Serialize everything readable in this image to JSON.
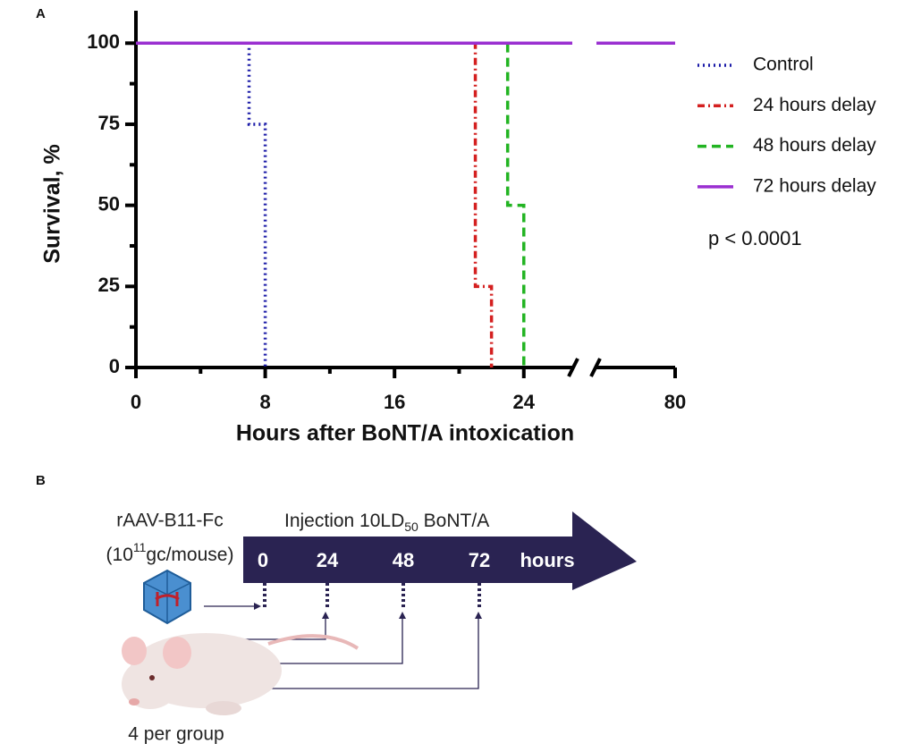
{
  "chart_data": {
    "type": "line",
    "panel_label": "A",
    "ylabel": "Survival, %",
    "xlabel": "Hours after BoNT/A intoxication",
    "xlim": [
      0,
      80
    ],
    "xbreak": [
      27,
      75
    ],
    "xticks": [
      0,
      8,
      16,
      24,
      80
    ],
    "xminorticks": [
      4,
      12,
      20
    ],
    "ylim": [
      0,
      110
    ],
    "yticks": [
      0,
      25,
      50,
      75,
      100
    ],
    "yminorticks": [
      12.5,
      37.5,
      62.5,
      87.5
    ],
    "step": true,
    "series": [
      {
        "name": "Control",
        "color": "#1c1ca8",
        "style": "dotted",
        "x": [
          0,
          7,
          7,
          8,
          8
        ],
        "values": [
          100,
          100,
          75,
          75,
          0
        ]
      },
      {
        "name": "24 hours delay",
        "color": "#d42020",
        "style": "dashdot",
        "x": [
          0,
          21,
          21,
          22,
          22
        ],
        "values": [
          100,
          100,
          25,
          25,
          0
        ]
      },
      {
        "name": "48 hours delay",
        "color": "#22b422",
        "style": "dashed",
        "x": [
          0,
          23,
          23,
          24,
          24
        ],
        "values": [
          100,
          100,
          50,
          50,
          0
        ]
      },
      {
        "name": "72 hours delay",
        "color": "#9a2fd0",
        "style": "solid",
        "x": [
          0,
          80
        ],
        "values": [
          100,
          100
        ]
      }
    ],
    "annotation": "p < 0.0001"
  },
  "diagram": {
    "panel_label": "B",
    "vector": "rAAV-B11-Fc",
    "dose": [
      "(10",
      "11",
      "gc/mouse)"
    ],
    "injection": [
      "Injection 10LD",
      "50",
      " BoNT/A"
    ],
    "timeline": [
      "0",
      "24",
      "48",
      "72",
      "hours"
    ],
    "group": "4 per group"
  }
}
